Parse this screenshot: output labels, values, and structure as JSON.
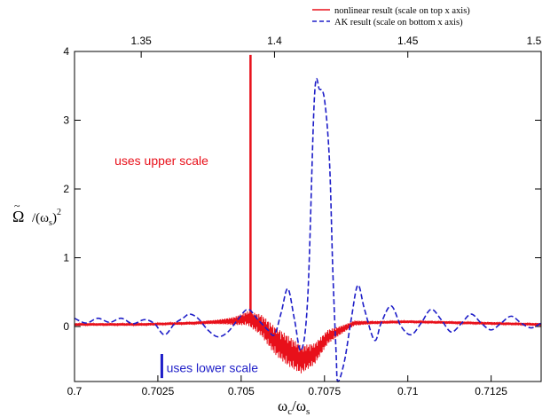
{
  "chart_data": {
    "type": "line",
    "title": "",
    "xlabel_bottom": "ω",
    "xlabel_bottom_sub1": "c",
    "xlabel_bottom_slash": "/ω",
    "xlabel_bottom_sub2": "s",
    "ylabel_main": "Ω",
    "ylabel_tilde": "~",
    "ylabel_rest": "/(ω",
    "ylabel_sub": "s",
    "ylabel_close": ")",
    "ylabel_sup": "2",
    "x_bottom": {
      "lim": [
        0.7,
        0.714
      ],
      "ticks": [
        0.7,
        0.7025,
        0.705,
        0.7075,
        0.71,
        0.7125
      ],
      "tick_labels": [
        "0.7",
        "0.7025",
        "0.705",
        "0.7075",
        "0.71",
        "0.7125"
      ]
    },
    "x_top": {
      "lim": [
        1.325,
        1.5
      ],
      "ticks": [
        1.35,
        1.4,
        1.45,
        1.5
      ],
      "tick_labels": [
        "1.35",
        "1.4",
        "1.45",
        "1.5"
      ]
    },
    "y": {
      "lim": [
        -0.8,
        4.0
      ],
      "ticks": [
        0,
        1,
        2,
        3,
        4
      ],
      "tick_labels": [
        "0",
        "1",
        "2",
        "3",
        "4"
      ]
    },
    "grid": false,
    "legend": "top-right",
    "series": [
      {
        "name": "nonlinear result (scale on top x axis)",
        "color": "#e8101a",
        "style": "solid",
        "axis": "top",
        "spike": {
          "x": 1.391,
          "y": 3.95
        },
        "envelope_points": [
          [
            1.325,
            0.03
          ],
          [
            1.35,
            0.03
          ],
          [
            1.37,
            0.05
          ],
          [
            1.385,
            0.08
          ],
          [
            1.39,
            0.12
          ],
          [
            1.395,
            0.02
          ],
          [
            1.4,
            -0.2
          ],
          [
            1.405,
            -0.35
          ],
          [
            1.41,
            -0.48
          ],
          [
            1.415,
            -0.4
          ],
          [
            1.42,
            -0.15
          ],
          [
            1.43,
            0.05
          ],
          [
            1.45,
            0.07
          ],
          [
            1.5,
            0.03
          ]
        ]
      },
      {
        "name": "AK result (scale on bottom x axis)",
        "color": "#1e1ec8",
        "style": "dashed",
        "axis": "bottom",
        "points": [
          [
            0.7,
            0.12
          ],
          [
            0.70035,
            0.05
          ],
          [
            0.7007,
            0.12
          ],
          [
            0.70105,
            0.06
          ],
          [
            0.7014,
            0.12
          ],
          [
            0.70175,
            0.04
          ],
          [
            0.7021,
            0.1
          ],
          [
            0.7024,
            0.04
          ],
          [
            0.7027,
            -0.12
          ],
          [
            0.703,
            0.04
          ],
          [
            0.70325,
            0.12
          ],
          [
            0.70345,
            0.18
          ],
          [
            0.7037,
            0.12
          ],
          [
            0.704,
            -0.05
          ],
          [
            0.7043,
            -0.15
          ],
          [
            0.7046,
            -0.08
          ],
          [
            0.7049,
            0.1
          ],
          [
            0.7052,
            0.25
          ],
          [
            0.7055,
            0.1
          ],
          [
            0.7058,
            -0.05
          ],
          [
            0.706,
            -0.12
          ],
          [
            0.7062,
            0.2
          ],
          [
            0.7064,
            0.55
          ],
          [
            0.7066,
            0.1
          ],
          [
            0.7068,
            -0.35
          ],
          [
            0.707,
            0.45
          ],
          [
            0.7072,
            3.35
          ],
          [
            0.70735,
            3.45
          ],
          [
            0.7075,
            3.3
          ],
          [
            0.70765,
            2.4
          ],
          [
            0.70775,
            0.8
          ],
          [
            0.70785,
            -0.4
          ],
          [
            0.7079,
            -0.8
          ],
          [
            0.7081,
            -0.5
          ],
          [
            0.7083,
            0.1
          ],
          [
            0.7085,
            0.6
          ],
          [
            0.7087,
            0.25
          ],
          [
            0.709,
            -0.2
          ],
          [
            0.7092,
            0.05
          ],
          [
            0.7095,
            0.3
          ],
          [
            0.7098,
            0.0
          ],
          [
            0.7101,
            -0.12
          ],
          [
            0.7104,
            0.05
          ],
          [
            0.7107,
            0.25
          ],
          [
            0.711,
            0.1
          ],
          [
            0.7113,
            -0.08
          ],
          [
            0.7116,
            0.04
          ],
          [
            0.7119,
            0.18
          ],
          [
            0.7122,
            0.05
          ],
          [
            0.7125,
            -0.05
          ],
          [
            0.7128,
            0.05
          ],
          [
            0.7131,
            0.15
          ],
          [
            0.7134,
            0.05
          ],
          [
            0.7137,
            -0.02
          ],
          [
            0.714,
            0.05
          ]
        ]
      }
    ],
    "annotations": [
      {
        "text": "uses upper scale",
        "color": "#e8101a",
        "x_top": 1.34,
        "y": 2.35
      },
      {
        "text": "uses lower scale",
        "color": "#1e1ec8",
        "x_bottom": 0.70265,
        "y": -0.6,
        "bar_x": 0.70262,
        "bar_y": [
          -0.4,
          -0.75
        ]
      }
    ]
  }
}
